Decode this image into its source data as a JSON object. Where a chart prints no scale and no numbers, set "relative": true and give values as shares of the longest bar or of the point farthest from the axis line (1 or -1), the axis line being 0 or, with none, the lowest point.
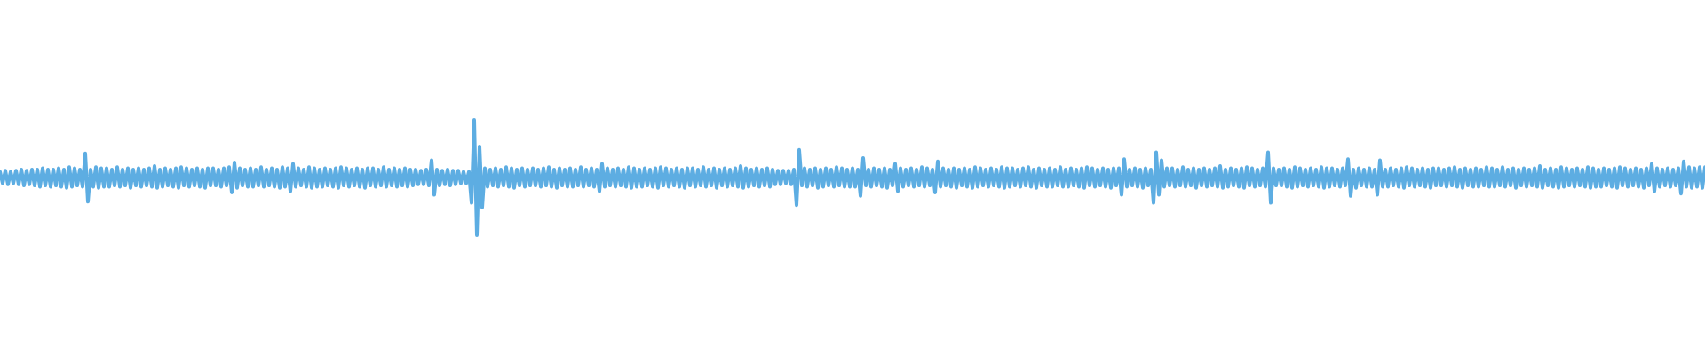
{
  "chart_data": {
    "type": "line",
    "relative": true,
    "color": "#5dade2",
    "marker": "none",
    "line_style": "solid",
    "categories": [
      null,
      null,
      null,
      null,
      null,
      null,
      null,
      null,
      null,
      null,
      null,
      null,
      null,
      null,
      null,
      null,
      null,
      null,
      null,
      null,
      null,
      null,
      null,
      null,
      null,
      null,
      null,
      null,
      null,
      null,
      null,
      null,
      null,
      null,
      null,
      null,
      null,
      null,
      null,
      null,
      null,
      null,
      null,
      null,
      null,
      null,
      null,
      null,
      null,
      null,
      null,
      null,
      null,
      null,
      null,
      null,
      null,
      null,
      null,
      null,
      null,
      null,
      null,
      null,
      null,
      null,
      null,
      null,
      null,
      null,
      null,
      null,
      null,
      null,
      null,
      null,
      null,
      null,
      null,
      null,
      null,
      null,
      null,
      null,
      null,
      null,
      null,
      null,
      null,
      null,
      null,
      null,
      null,
      null,
      null,
      null,
      null,
      null,
      null,
      null,
      null,
      null,
      null,
      null,
      null,
      null,
      null,
      null,
      null,
      null,
      null,
      null,
      null,
      null,
      null,
      null,
      null,
      null,
      null,
      null,
      null,
      null,
      null,
      null,
      null,
      null,
      null,
      null,
      null,
      null,
      null,
      null,
      null,
      null,
      null,
      null,
      null,
      null,
      null,
      null,
      null,
      null,
      null,
      null,
      null,
      null,
      null,
      null,
      null,
      null,
      null,
      null,
      null,
      null,
      null,
      null,
      null,
      null,
      null,
      null,
      null,
      null,
      null,
      null,
      null,
      null,
      null,
      null,
      null,
      null,
      null,
      null,
      null,
      null,
      null,
      null,
      null,
      null,
      null,
      null,
      null,
      null,
      null,
      null,
      null,
      null,
      null,
      null,
      null,
      null,
      null,
      null,
      null,
      null,
      null,
      null,
      null,
      null,
      null,
      null,
      null,
      null,
      null,
      null,
      null,
      null,
      null,
      null,
      null,
      null,
      null,
      null,
      null,
      null,
      null,
      null,
      null,
      null,
      null,
      null,
      null,
      null,
      null,
      null,
      null,
      null,
      null,
      null,
      null,
      null,
      null,
      null,
      null,
      null,
      null,
      null,
      null,
      null,
      null,
      null,
      null,
      null,
      null,
      null,
      null,
      null,
      null,
      null,
      null,
      null,
      null,
      null,
      null,
      null,
      null,
      null,
      null,
      null,
      null,
      null,
      null,
      null,
      null,
      null,
      null,
      null,
      null,
      null,
      null,
      null,
      null,
      null,
      null,
      null,
      null,
      null,
      null,
      null,
      null,
      null,
      null,
      null,
      null,
      null,
      null,
      null,
      null,
      null,
      null,
      null,
      null,
      null,
      null,
      null,
      null,
      null,
      null,
      null,
      null,
      null,
      null,
      null,
      null,
      null,
      null,
      null,
      null,
      null,
      null,
      null,
      null,
      null,
      null,
      null,
      null,
      null,
      null,
      null,
      null,
      null,
      null,
      null,
      null,
      null,
      null,
      null,
      null,
      null,
      null,
      null,
      null,
      null,
      null,
      null,
      null,
      null,
      null,
      null,
      null,
      null,
      null,
      null,
      null,
      null,
      null,
      null,
      null,
      null,
      null,
      null,
      null,
      null,
      null,
      null,
      null,
      null,
      null,
      null,
      null,
      null,
      null,
      null,
      null,
      null,
      null,
      null,
      null,
      null,
      null,
      null,
      null,
      null,
      null,
      null,
      null,
      null,
      null,
      null,
      null,
      null,
      null,
      null,
      null,
      null,
      null,
      null,
      null,
      null,
      null,
      null,
      null,
      null,
      null,
      null,
      null,
      null,
      null,
      null,
      null,
      null,
      null,
      null,
      null,
      null,
      null,
      null,
      null,
      null,
      null,
      null,
      null,
      null,
      null,
      null,
      null,
      null,
      null,
      null,
      null,
      null,
      null,
      null,
      null,
      null,
      null,
      null,
      null,
      null,
      null,
      null,
      null,
      null,
      null,
      null,
      null,
      null,
      null,
      null,
      null,
      null,
      null,
      null,
      null,
      null,
      null,
      null,
      null,
      null,
      null,
      null,
      null,
      null,
      null,
      null,
      null,
      null,
      null,
      null,
      null,
      null,
      null,
      null,
      null,
      null,
      null,
      null,
      null,
      null,
      null,
      null,
      null,
      null,
      null,
      null,
      null,
      null,
      null,
      null,
      null,
      null,
      null,
      null,
      null,
      null,
      null,
      null,
      null,
      null,
      null,
      null,
      null,
      null,
      null,
      null,
      null,
      null,
      null,
      null,
      null,
      null,
      null,
      null,
      null,
      null,
      null,
      null,
      null,
      null,
      null,
      null,
      null,
      null,
      null,
      null,
      null,
      null,
      null,
      null,
      null,
      null,
      null,
      null,
      null,
      null,
      null,
      null,
      null,
      null,
      null,
      null,
      null,
      null,
      null,
      null,
      null,
      null,
      null,
      null,
      null,
      null,
      null,
      null,
      null,
      null,
      null,
      null,
      null,
      null,
      null,
      null,
      null,
      null,
      null,
      null,
      null,
      null,
      null,
      null,
      null,
      null,
      null,
      null,
      null,
      null,
      null,
      null,
      null,
      null,
      null,
      null,
      null,
      null,
      null,
      null,
      null,
      null,
      null,
      null,
      null,
      null,
      null,
      null,
      null,
      null,
      null,
      null,
      null,
      null,
      null,
      null,
      null,
      null,
      null,
      null,
      null,
      null,
      null,
      null,
      null,
      null,
      null,
      null,
      null,
      null,
      null,
      null,
      null,
      null,
      null,
      null,
      null,
      null,
      null,
      null,
      null,
      null,
      null,
      null,
      null,
      null,
      null,
      null,
      null,
      null,
      null,
      null,
      null,
      null,
      null,
      null,
      null,
      null,
      null,
      null,
      null,
      null,
      null,
      null,
      null,
      null,
      null
    ],
    "values": [
      0.55,
      0.45,
      0.56,
      0.44,
      0.55,
      0.45,
      0.56,
      0.44,
      0.57,
      0.43,
      0.56,
      0.44,
      0.57,
      0.43,
      0.57,
      0.42,
      0.58,
      0.43,
      0.57,
      0.42,
      0.57,
      0.43,
      0.58,
      0.42,
      0.57,
      0.41,
      0.59,
      0.42,
      0.58,
      0.43,
      0.57,
      0.42,
      0.71,
      0.29,
      0.57,
      0.42,
      0.59,
      0.41,
      0.58,
      0.42,
      0.58,
      0.42,
      0.57,
      0.43,
      0.59,
      0.42,
      0.57,
      0.43,
      0.58,
      0.41,
      0.57,
      0.43,
      0.58,
      0.42,
      0.57,
      0.43,
      0.58,
      0.42,
      0.6,
      0.41,
      0.57,
      0.42,
      0.58,
      0.43,
      0.57,
      0.42,
      0.58,
      0.41,
      0.59,
      0.43,
      0.58,
      0.42,
      0.57,
      0.43,
      0.58,
      0.42,
      0.57,
      0.41,
      0.58,
      0.43,
      0.58,
      0.43,
      0.57,
      0.42,
      0.58,
      0.43,
      0.59,
      0.37,
      0.63,
      0.41,
      0.58,
      0.43,
      0.57,
      0.42,
      0.58,
      0.42,
      0.57,
      0.43,
      0.59,
      0.42,
      0.57,
      0.43,
      0.58,
      0.42,
      0.57,
      0.41,
      0.59,
      0.42,
      0.58,
      0.38,
      0.62,
      0.42,
      0.58,
      0.43,
      0.57,
      0.42,
      0.59,
      0.41,
      0.58,
      0.42,
      0.57,
      0.42,
      0.58,
      0.43,
      0.57,
      0.42,
      0.58,
      0.41,
      0.59,
      0.43,
      0.58,
      0.42,
      0.57,
      0.43,
      0.58,
      0.42,
      0.57,
      0.41,
      0.58,
      0.43,
      0.58,
      0.42,
      0.57,
      0.43,
      0.59,
      0.42,
      0.57,
      0.43,
      0.58,
      0.42,
      0.57,
      0.43,
      0.58,
      0.42,
      0.57,
      0.43,
      0.57,
      0.44,
      0.56,
      0.44,
      0.57,
      0.43,
      0.65,
      0.35,
      0.57,
      0.43,
      0.56,
      0.44,
      0.57,
      0.43,
      0.56,
      0.44,
      0.56,
      0.45,
      0.55,
      0.45,
      0.55,
      0.28,
      1,
      0,
      0.77,
      0.24,
      0.58,
      0.42,
      0.57,
      0.43,
      0.58,
      0.42,
      0.57,
      0.43,
      0.59,
      0.42,
      0.58,
      0.41,
      0.57,
      0.43,
      0.58,
      0.42,
      0.57,
      0.43,
      0.58,
      0.43,
      0.57,
      0.42,
      0.58,
      0.43,
      0.59,
      0.42,
      0.57,
      0.41,
      0.58,
      0.43,
      0.57,
      0.42,
      0.58,
      0.42,
      0.57,
      0.43,
      0.59,
      0.42,
      0.57,
      0.43,
      0.58,
      0.42,
      0.57,
      0.38,
      0.62,
      0.42,
      0.58,
      0.43,
      0.57,
      0.42,
      0.58,
      0.43,
      0.57,
      0.42,
      0.59,
      0.41,
      0.58,
      0.42,
      0.57,
      0.42,
      0.58,
      0.43,
      0.57,
      0.42,
      0.58,
      0.41,
      0.59,
      0.43,
      0.58,
      0.42,
      0.57,
      0.43,
      0.58,
      0.42,
      0.57,
      0.41,
      0.58,
      0.43,
      0.58,
      0.42,
      0.57,
      0.43,
      0.59,
      0.42,
      0.57,
      0.43,
      0.58,
      0.41,
      0.57,
      0.43,
      0.58,
      0.42,
      0.57,
      0.43,
      0.58,
      0.42,
      0.6,
      0.41,
      0.58,
      0.42,
      0.57,
      0.43,
      0.58,
      0.42,
      0.57,
      0.43,
      0.58,
      0.42,
      0.57,
      0.44,
      0.56,
      0.44,
      0.56,
      0.45,
      0.56,
      0.44,
      0.57,
      0.26,
      0.74,
      0.43,
      0.58,
      0.42,
      0.57,
      0.43,
      0.58,
      0.41,
      0.57,
      0.42,
      0.58,
      0.43,
      0.57,
      0.42,
      0.59,
      0.43,
      0.58,
      0.42,
      0.57,
      0.42,
      0.58,
      0.42,
      0.57,
      0.34,
      0.67,
      0.43,
      0.57,
      0.42,
      0.58,
      0.43,
      0.57,
      0.42,
      0.58,
      0.41,
      0.57,
      0.43,
      0.62,
      0.38,
      0.58,
      0.42,
      0.57,
      0.43,
      0.58,
      0.42,
      0.57,
      0.43,
      0.59,
      0.42,
      0.58,
      0.43,
      0.57,
      0.37,
      0.64,
      0.42,
      0.58,
      0.43,
      0.57,
      0.42,
      0.58,
      0.41,
      0.57,
      0.43,
      0.58,
      0.42,
      0.57,
      0.41,
      0.59,
      0.42,
      0.58,
      0.43,
      0.57,
      0.42,
      0.58,
      0.43,
      0.57,
      0.42,
      0.59,
      0.41,
      0.58,
      0.42,
      0.58,
      0.43,
      0.57,
      0.42,
      0.58,
      0.43,
      0.59,
      0.42,
      0.57,
      0.41,
      0.58,
      0.43,
      0.57,
      0.42,
      0.58,
      0.42,
      0.57,
      0.43,
      0.59,
      0.42,
      0.57,
      0.42,
      0.58,
      0.43,
      0.57,
      0.42,
      0.58,
      0.41,
      0.59,
      0.43,
      0.58,
      0.42,
      0.57,
      0.43,
      0.58,
      0.42,
      0.57,
      0.41,
      0.58,
      0.43,
      0.58,
      0.35,
      0.66,
      0.42,
      0.57,
      0.43,
      0.58,
      0.42,
      0.57,
      0.41,
      0.58,
      0.43,
      0.57,
      0.28,
      0.72,
      0.35,
      0.65,
      0.42,
      0.58,
      0.43,
      0.58,
      0.42,
      0.57,
      0.43,
      0.59,
      0.42,
      0.57,
      0.43,
      0.58,
      0.41,
      0.57,
      0.43,
      0.58,
      0.42,
      0.57,
      0.43,
      0.58,
      0.42,
      0.6,
      0.41,
      0.57,
      0.42,
      0.58,
      0.43,
      0.57,
      0.42,
      0.58,
      0.41,
      0.59,
      0.43,
      0.58,
      0.42,
      0.57,
      0.43,
      0.58,
      0.42,
      0.72,
      0.28,
      0.58,
      0.43,
      0.57,
      0.43,
      0.58,
      0.42,
      0.57,
      0.41,
      0.59,
      0.42,
      0.58,
      0.43,
      0.57,
      0.42,
      0.58,
      0.43,
      0.57,
      0.42,
      0.59,
      0.41,
      0.58,
      0.42,
      0.58,
      0.43,
      0.57,
      0.42,
      0.58,
      0.43,
      0.66,
      0.34,
      0.57,
      0.41,
      0.58,
      0.43,
      0.57,
      0.42,
      0.58,
      0.42,
      0.57,
      0.35,
      0.65,
      0.42,
      0.57,
      0.42,
      0.58,
      0.43,
      0.57,
      0.42,
      0.58,
      0.41,
      0.59,
      0.43,
      0.58,
      0.42,
      0.57,
      0.43,
      0.58,
      0.42,
      0.57,
      0.41,
      0.58,
      0.43,
      0.58,
      0.43,
      0.57,
      0.42,
      0.58,
      0.43,
      0.59,
      0.42,
      0.57,
      0.41,
      0.58,
      0.43,
      0.57,
      0.42,
      0.58,
      0.42,
      0.57,
      0.43,
      0.59,
      0.42,
      0.58,
      0.42,
      0.57,
      0.43,
      0.59,
      0.42,
      0.57,
      0.43,
      0.58,
      0.41,
      0.57,
      0.43,
      0.58,
      0.42,
      0.57,
      0.43,
      0.58,
      0.42,
      0.6,
      0.41,
      0.57,
      0.43,
      0.58,
      0.42,
      0.57,
      0.41,
      0.59,
      0.42,
      0.58,
      0.43,
      0.57,
      0.42,
      0.58,
      0.43,
      0.57,
      0.42,
      0.59,
      0.41,
      0.58,
      0.42,
      0.57,
      0.42,
      0.58,
      0.43,
      0.57,
      0.42,
      0.58,
      0.41,
      0.59,
      0.43,
      0.58,
      0.42,
      0.57,
      0.43,
      0.58,
      0.42,
      0.57,
      0.41,
      0.58,
      0.43,
      0.62,
      0.38,
      0.58,
      0.42,
      0.57,
      0.43,
      0.58,
      0.42,
      0.57,
      0.43,
      0.58,
      0.36,
      0.64,
      0.42,
      0.59,
      0.41,
      0.58,
      0.42,
      0.59,
      0.41,
      0.59
    ]
  }
}
